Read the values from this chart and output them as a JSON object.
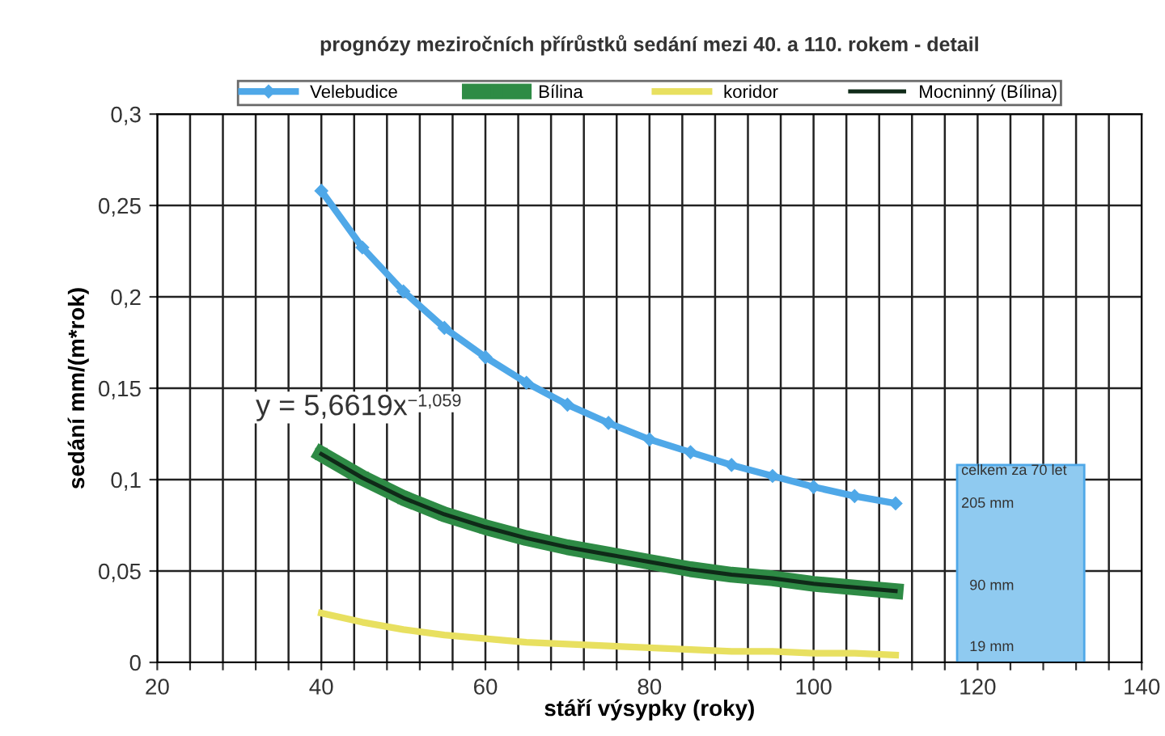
{
  "chart_data": {
    "type": "line",
    "title": "prognózy meziročních přírůstků sedání mezi 40. a 110. rokem - detail",
    "xlabel": "stáří výsypky (roky)",
    "ylabel": "sedání mm/(m*rok)",
    "x": [
      40,
      45,
      50,
      55,
      60,
      65,
      70,
      75,
      80,
      85,
      90,
      95,
      100,
      105,
      110
    ],
    "series": [
      {
        "name": "Velebudice",
        "color": "#4fa8e8",
        "marker": "diamond",
        "values": [
          0.258,
          0.227,
          0.203,
          0.183,
          0.167,
          0.153,
          0.141,
          0.131,
          0.122,
          0.115,
          0.108,
          0.102,
          0.096,
          0.091,
          0.087
        ]
      },
      {
        "name": "Bílina",
        "color": "#2e8b45",
        "marker": "square",
        "values": [
          0.114,
          0.101,
          0.09,
          0.081,
          0.074,
          0.068,
          0.063,
          0.059,
          0.055,
          0.051,
          0.048,
          0.046,
          0.043,
          0.041,
          0.039
        ]
      },
      {
        "name": "koridor",
        "color": "#e8e060",
        "marker": "none",
        "values": [
          0.027,
          0.022,
          0.018,
          0.015,
          0.013,
          0.011,
          0.01,
          0.009,
          0.008,
          0.007,
          0.006,
          0.006,
          0.005,
          0.005,
          0.004
        ]
      },
      {
        "name": "Mocninný (Bílina)",
        "color": "#0f2a18",
        "marker": "none",
        "values": [
          0.114,
          0.101,
          0.09,
          0.081,
          0.074,
          0.068,
          0.063,
          0.059,
          0.055,
          0.051,
          0.048,
          0.046,
          0.043,
          0.041,
          0.039
        ]
      }
    ],
    "xlim": [
      20,
      140
    ],
    "ylim": [
      0,
      0.3
    ],
    "xticks": [
      20,
      {
        "value": 24,
        "label": null
      },
      {
        "value": 28,
        "label": null
      },
      {
        "value": 32,
        "label": null
      },
      {
        "value": 36,
        "label": null
      },
      40,
      {
        "value": 44,
        "label": null
      },
      {
        "value": 48,
        "label": null
      },
      {
        "value": 52,
        "label": null
      },
      {
        "value": 56,
        "label": null
      },
      60,
      {
        "value": 64,
        "label": null
      },
      {
        "value": 68,
        "label": null
      },
      {
        "value": 72,
        "label": null
      },
      {
        "value": 76,
        "label": null
      },
      80,
      {
        "value": 84,
        "label": null
      },
      {
        "value": 88,
        "label": null
      },
      {
        "value": 92,
        "label": null
      },
      {
        "value": 96,
        "label": null
      },
      100,
      {
        "value": 104,
        "label": null
      },
      {
        "value": 108,
        "label": null
      },
      {
        "value": 112,
        "label": null
      },
      {
        "value": 116,
        "label": null
      },
      120,
      {
        "value": 124,
        "label": null
      },
      {
        "value": 128,
        "label": null
      },
      {
        "value": 132,
        "label": null
      },
      {
        "value": 136,
        "label": null
      },
      140
    ],
    "yticks": [
      {
        "value": 0,
        "label": "0"
      },
      {
        "value": 0.05,
        "label": "0,05"
      },
      {
        "value": 0.1,
        "label": "0,1"
      },
      {
        "value": 0.15,
        "label": "0,15"
      },
      {
        "value": 0.2,
        "label": "0,2"
      },
      {
        "value": 0.25,
        "label": "0,25"
      },
      {
        "value": 0.3,
        "label": "0,3"
      }
    ],
    "grid": true,
    "legend": "top",
    "annotations": [
      "y = 5,6619x$^{−1,059}$",
      "celkem za 70 let",
      "205 mm",
      "90 mm",
      "19 mm"
    ]
  }
}
